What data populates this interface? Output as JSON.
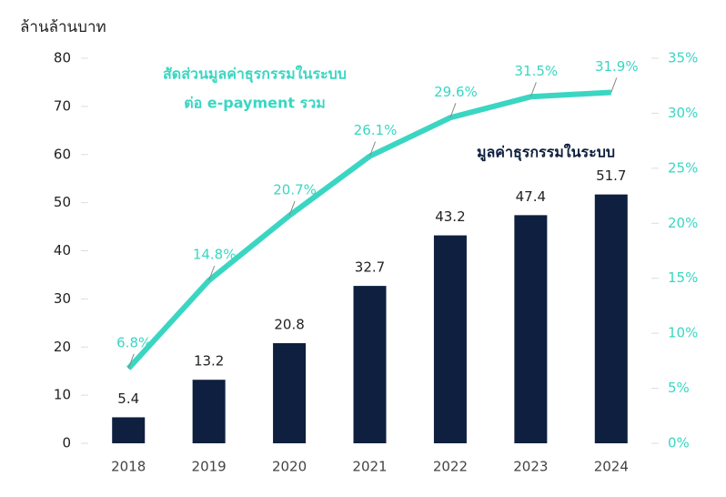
{
  "chart_data": {
    "type": "combo",
    "y_label": "ล้านล้านบาท",
    "annotations": [
      "สัดส่วนมูลค่าธุรกรรมในระบบ",
      "ต่อ e-payment รวม",
      "มูลค่าธุรกรรมในระบบ"
    ],
    "categories": [
      "2018",
      "2019",
      "2020",
      "2021",
      "2022",
      "2023",
      "2024"
    ],
    "series": [
      {
        "type": "bar",
        "color": "#0e1f3f",
        "values": [
          5.4,
          13.2,
          20.8,
          32.7,
          43.2,
          47.4,
          51.7
        ]
      },
      {
        "type": "line",
        "axis": "y2",
        "color": "#3ad6c2",
        "values": [
          6.8,
          14.8,
          20.7,
          26.1,
          29.6,
          31.5,
          31.9
        ],
        "value_labels": [
          "6.8%",
          "14.8%",
          "20.7%",
          "26.1%",
          "29.6%",
          "31.5%",
          "31.9%"
        ]
      }
    ],
    "ylim": [
      0,
      80
    ],
    "yticks": [
      0,
      10,
      20,
      30,
      40,
      50,
      60,
      70,
      80
    ],
    "y2lim": [
      0,
      35
    ],
    "y2ticks": [
      {
        "value": 0,
        "label": "0%"
      },
      {
        "value": 5,
        "label": "5%"
      },
      {
        "value": 10,
        "label": "10%"
      },
      {
        "value": 15,
        "label": "15%"
      },
      {
        "value": 20,
        "label": "20%"
      },
      {
        "value": 25,
        "label": "25%"
      },
      {
        "value": 30,
        "label": "30%"
      },
      {
        "value": 35,
        "label": "35%"
      }
    ],
    "grid": false
  }
}
